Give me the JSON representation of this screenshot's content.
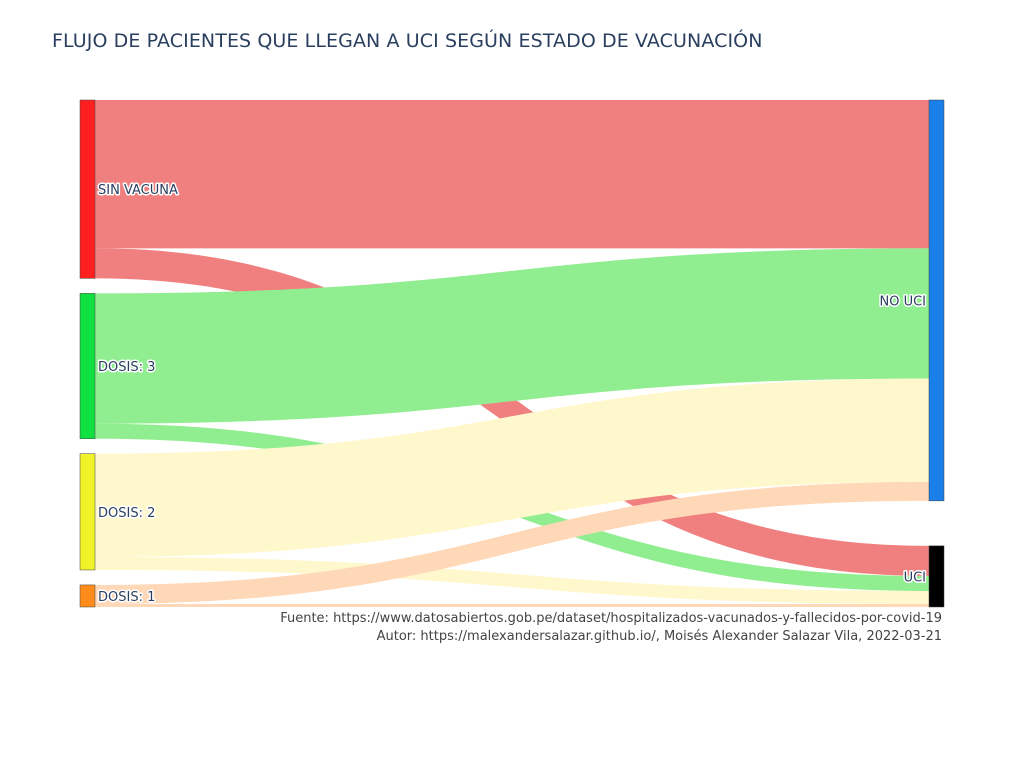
{
  "chart_data": {
    "type": "sankey",
    "title": "FLUJO DE PACIENTES QUE LLEGAN A UCI SEGÚN ESTADO DE VACUNACIÓN",
    "nodes": [
      {
        "id": "sin_vacuna",
        "label": "SIN VACUNA",
        "color": "#ff1f1f",
        "column": 0
      },
      {
        "id": "dosis3",
        "label": "DOSIS: 3",
        "color": "#10e040",
        "column": 0
      },
      {
        "id": "dosis2",
        "label": "DOSIS: 2",
        "color": "#f2f22a",
        "column": 0
      },
      {
        "id": "dosis1",
        "label": "DOSIS: 1",
        "color": "#ff8c1a",
        "column": 0
      },
      {
        "id": "no_uci",
        "label": "NO UCI",
        "color": "#1a7fe8",
        "column": 1
      },
      {
        "id": "uci",
        "label": "UCI",
        "color": "#000000",
        "column": 1
      }
    ],
    "links": [
      {
        "source": "sin_vacuna",
        "target": "no_uci",
        "value": 148,
        "color": "#f08080"
      },
      {
        "source": "sin_vacuna",
        "target": "uci",
        "value": 30,
        "color": "#f08080"
      },
      {
        "source": "dosis3",
        "target": "no_uci",
        "value": 130,
        "color": "#90ee90"
      },
      {
        "source": "dosis3",
        "target": "uci",
        "value": 15,
        "color": "#90ee90"
      },
      {
        "source": "dosis2",
        "target": "no_uci",
        "value": 103,
        "color": "#fff8cc"
      },
      {
        "source": "dosis2",
        "target": "uci",
        "value": 13,
        "color": "#fff8cc"
      },
      {
        "source": "dosis1",
        "target": "no_uci",
        "value": 19,
        "color": "#ffd8b8"
      },
      {
        "source": "dosis1",
        "target": "uci",
        "value": 3,
        "color": "#ffd8b8"
      }
    ]
  },
  "annotations": {
    "source": "Fuente: https://www.datosabiertos.gob.pe/dataset/hospitalizados-vacunados-y-fallecidos-por-covid-19",
    "author": "Autor: https://malexandersalazar.github.io/, Moisés Alexander Salazar Vila, 2022-03-21"
  }
}
